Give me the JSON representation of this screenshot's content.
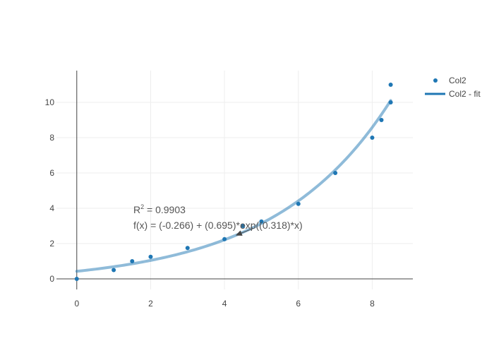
{
  "chart_data": {
    "type": "scatter",
    "title": "",
    "xlabel": "",
    "ylabel": "",
    "xlim": [
      -0.55,
      9.1
    ],
    "ylim": [
      -0.6,
      11.8
    ],
    "xticks": [
      0,
      2,
      4,
      6,
      8
    ],
    "yticks": [
      0,
      2,
      4,
      6,
      8,
      10
    ],
    "grid": true,
    "legend_position": "top-right",
    "series": [
      {
        "name": "Col2",
        "kind": "markers",
        "color": "#1f77b4",
        "x": [
          0,
          1,
          1.5,
          2,
          3,
          4,
          4.5,
          5,
          6,
          7,
          8,
          8.25,
          8.5,
          8.5
        ],
        "y": [
          0,
          0.5,
          1,
          1.25,
          1.75,
          2.25,
          3,
          3.25,
          4.25,
          6,
          8,
          9,
          10,
          11
        ]
      },
      {
        "name": "Col2 - fit",
        "kind": "line",
        "color": "#1f77b4",
        "fit": {
          "a": -0.266,
          "b": 0.695,
          "c": 0.318,
          "x_from": 0,
          "x_to": 8.5
        }
      }
    ],
    "annotation": {
      "r2_label": "R",
      "r2_sup": "2",
      "r2_value": " = 0.9903",
      "equation": "f(x) = (-0.266) + (0.695)*exp((0.318)*x)",
      "arrow_x": 4.3
    }
  }
}
